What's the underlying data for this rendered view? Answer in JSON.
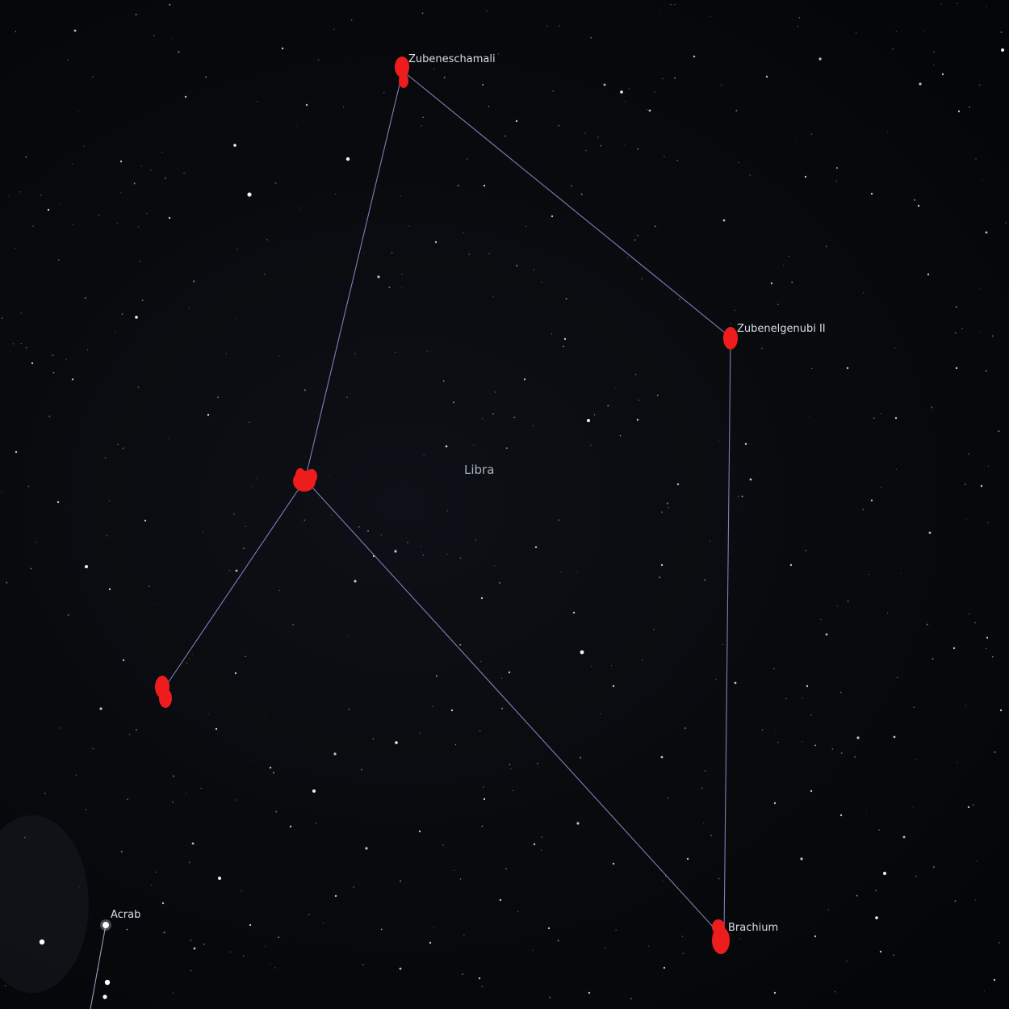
{
  "constellation": {
    "name": "Libra",
    "line_color": "#7f7fb8"
  },
  "labels": {
    "zubeneschamali": "Zubeneschamali",
    "zubenelgenubi": "Zubenelgenubi II",
    "brachium": "Brachium",
    "acrab": "Acrab"
  },
  "colors": {
    "background": "#06080b",
    "marker": "#ee1c1c",
    "star": "#ffffff",
    "label": "#d8dde6"
  }
}
